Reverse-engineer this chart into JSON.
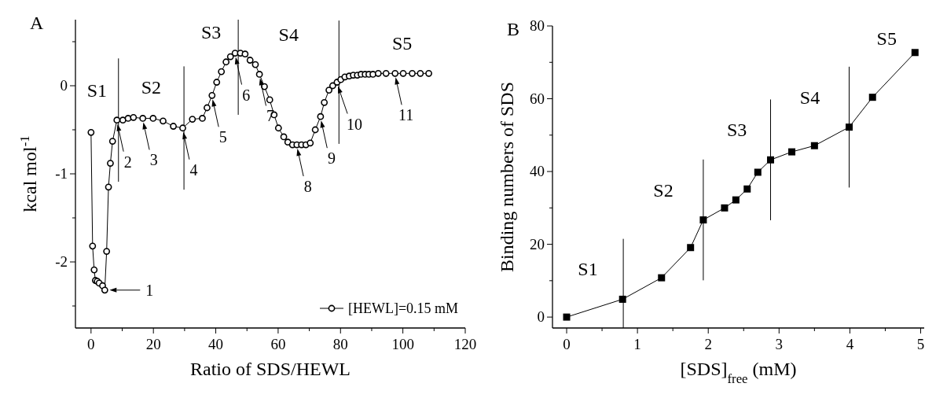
{
  "chart_data": [
    {
      "type": "line",
      "title": "A",
      "xlabel": "Ratio of SDS/HEWL",
      "ylabel": "kcal mol$^{-1}$",
      "xlim": [
        -5,
        120
      ],
      "xticks": [
        0,
        {
          "value": 10,
          "label": null
        },
        20,
        {
          "value": 30,
          "label": null
        },
        40,
        {
          "value": 50,
          "label": null
        },
        60,
        {
          "value": 70,
          "label": null
        },
        80,
        {
          "value": 90,
          "label": null
        },
        100,
        {
          "value": 110,
          "label": null
        },
        120
      ],
      "ylim": [
        -2.75,
        0.75
      ],
      "yticks": [
        {
          "value": -2.5,
          "label": null
        },
        -2,
        {
          "value": -1.5,
          "label": null
        },
        -1,
        {
          "value": -0.5,
          "label": null
        },
        0,
        {
          "value": 0.5,
          "label": null
        }
      ],
      "marker": "circle",
      "line_style": "solid",
      "legend": "bottom right",
      "grid": false,
      "series": [
        {
          "name": "[HEWL]=0.15 mM",
          "color": "#000000",
          "x": [
            0.0,
            0.5,
            1.0,
            1.4,
            2.0,
            2.6,
            3.7,
            4.4,
            5.0,
            5.6,
            6.2,
            6.9,
            8.3,
            10.2,
            11.9,
            13.6,
            16.6,
            19.9,
            23.1,
            26.4,
            29.4,
            32.5,
            35.7,
            37.2,
            38.8,
            40.3,
            41.8,
            43.3,
            44.7,
            46.2,
            47.9,
            49.4,
            51.0,
            52.7,
            54.0,
            55.6,
            57.3,
            58.7,
            60.1,
            61.8,
            63.1,
            64.6,
            66.0,
            67.5,
            68.9,
            70.3,
            71.9,
            73.6,
            74.8,
            76.3,
            77.5,
            78.9,
            80.1,
            81.4,
            82.8,
            84.1,
            85.4,
            86.6,
            87.9,
            89.1,
            90.4,
            92.1,
            94.6,
            97.5,
            100.1,
            103.0,
            105.6,
            108.3
          ],
          "values": [
            -0.53,
            -1.82,
            -2.09,
            -2.21,
            -2.22,
            -2.24,
            -2.27,
            -2.32,
            -1.88,
            -1.15,
            -0.88,
            -0.63,
            -0.39,
            -0.39,
            -0.37,
            -0.36,
            -0.37,
            -0.37,
            -0.4,
            -0.46,
            -0.48,
            -0.38,
            -0.37,
            -0.25,
            -0.11,
            0.04,
            0.16,
            0.27,
            0.33,
            0.37,
            0.37,
            0.36,
            0.29,
            0.24,
            0.13,
            -0.01,
            -0.16,
            -0.33,
            -0.48,
            -0.58,
            -0.64,
            -0.67,
            -0.67,
            -0.67,
            -0.67,
            -0.65,
            -0.5,
            -0.35,
            -0.19,
            -0.05,
            0.0,
            0.04,
            0.07,
            0.1,
            0.11,
            0.12,
            0.12,
            0.13,
            0.13,
            0.13,
            0.13,
            0.14,
            0.14,
            0.14,
            0.14,
            0.14,
            0.14,
            0.14
          ]
        }
      ],
      "ref_lines": [
        {
          "axis": "x",
          "value": 8.8,
          "label": null
        },
        {
          "axis": "x",
          "value": 29.8,
          "label": null
        },
        {
          "axis": "x",
          "value": 47.2,
          "label": null
        },
        {
          "axis": "x",
          "value": 79.5,
          "label": null
        }
      ],
      "annotations": [
        "S1",
        "S2",
        "S3",
        "S4",
        "S5",
        {
          "text": "1",
          "x": 4.4,
          "y": -2.32
        },
        {
          "text": "2",
          "x": 8.3,
          "y": -0.39
        },
        {
          "text": "3",
          "x": 16.6,
          "y": -0.37
        },
        {
          "text": "4",
          "x": 29.4,
          "y": -0.48
        },
        {
          "text": "5",
          "x": 38.8,
          "y": -0.11
        },
        {
          "text": "6",
          "x": 46.2,
          "y": 0.37
        },
        {
          "text": "7",
          "x": 54.0,
          "y": 0.13
        },
        {
          "text": "8",
          "x": 66.0,
          "y": -0.67
        },
        {
          "text": "9",
          "x": 73.6,
          "y": -0.35
        },
        {
          "text": "10",
          "x": 78.9,
          "y": 0.04
        },
        {
          "text": "11",
          "x": 97.5,
          "y": 0.14
        }
      ]
    },
    {
      "type": "line",
      "title": "B",
      "xlabel": "[SDS]$_{free}$ (mM)",
      "ylabel": "Binding numbers of SDS",
      "xlim": [
        -0.2,
        5.05
      ],
      "xticks": [
        0,
        {
          "value": 0.5,
          "label": null
        },
        1,
        {
          "value": 1.5,
          "label": null
        },
        2,
        {
          "value": 2.5,
          "label": null
        },
        3,
        {
          "value": 3.5,
          "label": null
        },
        4,
        {
          "value": 4.5,
          "label": null
        },
        5
      ],
      "ylim": [
        -3,
        80
      ],
      "yticks": [
        0,
        {
          "value": 10,
          "label": null
        },
        20,
        {
          "value": 30,
          "label": null
        },
        40,
        {
          "value": 50,
          "label": null
        },
        60,
        {
          "value": 70,
          "label": null
        },
        80
      ],
      "marker": "square",
      "line_style": "solid",
      "grid": false,
      "series": [
        {
          "color": "#000000",
          "x": [
            0,
            0.79,
            1.34,
            1.75,
            1.93,
            2.23,
            2.39,
            2.55,
            2.7,
            2.88,
            3.18,
            3.5,
            3.99,
            4.32,
            4.92
          ],
          "values": [
            0,
            4.9,
            10.8,
            19.1,
            26.7,
            30.0,
            32.2,
            35.2,
            39.8,
            43.2,
            45.4,
            47.1,
            52.2,
            60.4,
            72.7
          ]
        }
      ],
      "ref_lines": [
        {
          "axis": "x",
          "value": 0.8,
          "label": null
        },
        {
          "axis": "x",
          "value": 1.93,
          "label": null
        },
        {
          "axis": "x",
          "value": 2.88,
          "label": null
        },
        {
          "axis": "x",
          "value": 3.99,
          "label": null
        }
      ],
      "annotations": [
        "S1",
        "S2",
        "S3",
        "S4",
        "S5"
      ]
    }
  ]
}
